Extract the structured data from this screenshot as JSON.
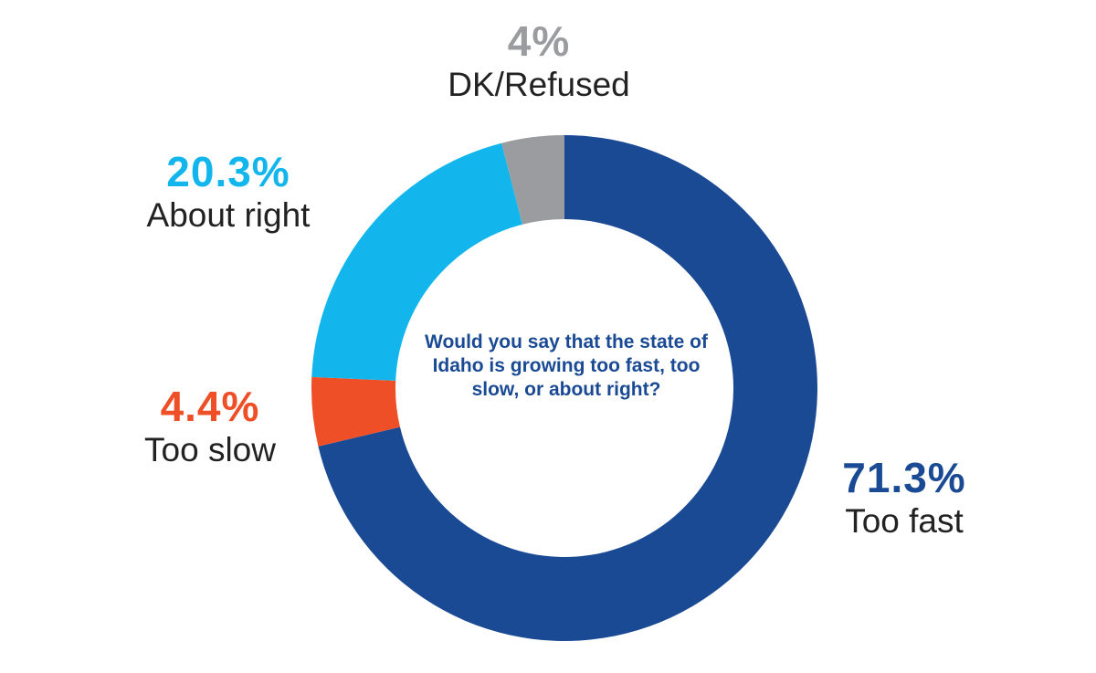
{
  "chart_data": {
    "type": "pie",
    "donut": true,
    "center_text": "Would you say that the state of Idaho is growing too fast, too slow, or about right?",
    "slices": [
      {
        "label": "Too fast",
        "value": 71.3,
        "display": "71.3%",
        "color": "#1B4A94"
      },
      {
        "label": "Too slow",
        "value": 4.4,
        "display": "4.4%",
        "color": "#EE4F26"
      },
      {
        "label": "About right",
        "value": 20.3,
        "display": "20.3%",
        "color": "#12B6ED"
      },
      {
        "label": "DK/Refused",
        "value": 4,
        "display": "4%",
        "color": "#9B9C9F"
      }
    ],
    "center_text_color": "#1B4A94"
  }
}
